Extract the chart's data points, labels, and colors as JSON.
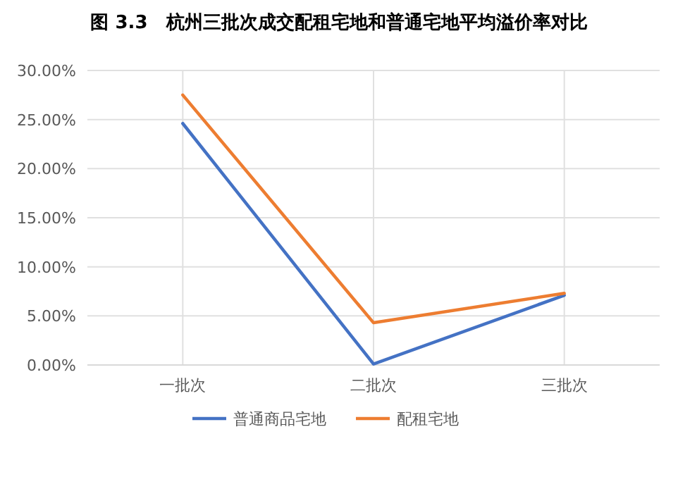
{
  "chart_data": {
    "type": "line",
    "title": "图 3.3　杭州三批次成交配租宅地和普通宅地平均溢价率对比",
    "categories": [
      "一批次",
      "二批次",
      "三批次"
    ],
    "series": [
      {
        "name": "普通商品宅地",
        "color": "#4472c4",
        "values": [
          24.6,
          0.1,
          7.1
        ]
      },
      {
        "name": "配租宅地",
        "color": "#ed7d31",
        "values": [
          27.5,
          4.3,
          7.3
        ]
      }
    ],
    "ylim": [
      0,
      30
    ],
    "yticks": [
      {
        "value": 0,
        "label": "0.00%"
      },
      {
        "value": 5,
        "label": "5.00%"
      },
      {
        "value": 10,
        "label": "10.00%"
      },
      {
        "value": 15,
        "label": "15.00%"
      },
      {
        "value": 20,
        "label": "20.00%"
      },
      {
        "value": 25,
        "label": "25.00%"
      },
      {
        "value": 30,
        "label": "30.00%"
      }
    ],
    "grid": true,
    "legend": "bottom",
    "marker": "none",
    "line_style": "solid"
  }
}
